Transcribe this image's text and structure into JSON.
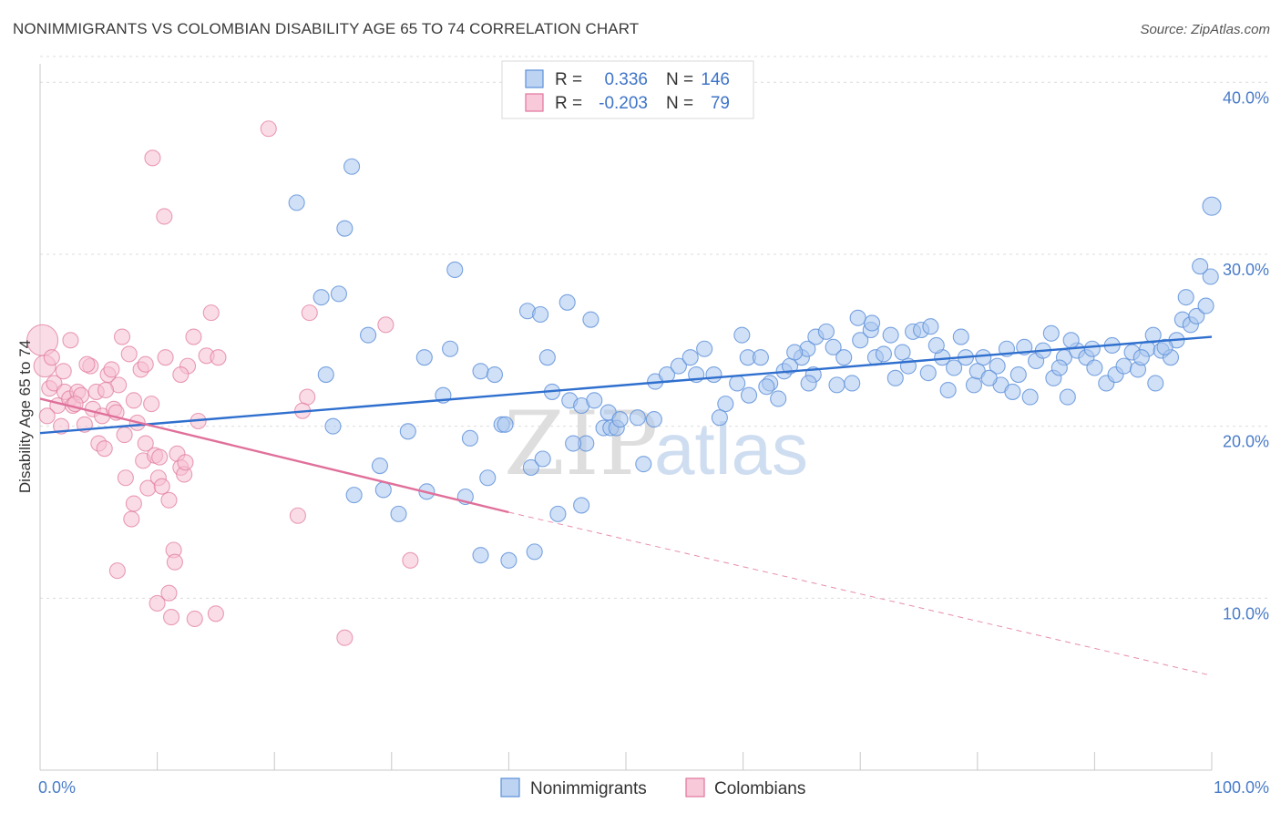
{
  "title": "NONIMMIGRANTS VS COLOMBIAN DISABILITY AGE 65 TO 74 CORRELATION CHART",
  "source": "Source: ZipAtlas.com",
  "watermark": {
    "zip": "ZIP",
    "atlas": "atlas"
  },
  "colors": {
    "blue": "#5b8fd9",
    "blue_fill": "#a9c6ee",
    "blue_line": "#2f6fce",
    "pink": "#e0769b",
    "pink_fill": "#f6bfd2",
    "pink_line": "#e0709a"
  },
  "legend_top": {
    "rows": [
      {
        "r_label": "R =",
        "r_value": "0.336",
        "n_label": "N =",
        "n_value": "146"
      },
      {
        "r_label": "R =",
        "r_value": "-0.203",
        "n_label": "N =",
        "n_value": "79"
      }
    ]
  },
  "legend_bottom": [
    "Nonimmigrants",
    "Colombians"
  ],
  "chart_data": {
    "type": "scatter",
    "title": "NONIMMIGRANTS VS COLOMBIAN DISABILITY AGE 65 TO 74 CORRELATION CHART",
    "xlabel": "",
    "ylabel": "Disability Age 65 to 74",
    "xlim": [
      0,
      100
    ],
    "ylim": [
      0,
      41.5
    ],
    "x_ticks": [
      "0.0%",
      "100.0%"
    ],
    "y_ticks": [
      {
        "value": 10,
        "label": "10.0%"
      },
      {
        "value": 20,
        "label": "20.0%"
      },
      {
        "value": 30,
        "label": "30.0%"
      },
      {
        "value": 40,
        "label": "40.0%"
      }
    ],
    "grid": true,
    "series": [
      {
        "name": "Nonimmigrants",
        "r": 0.336,
        "n": 146,
        "trend": {
          "x": [
            0,
            100
          ],
          "y": [
            19.6,
            25.2
          ]
        },
        "points": [
          [
            21.9,
            33.0
          ],
          [
            26.6,
            35.1
          ],
          [
            26.0,
            31.5
          ],
          [
            24.0,
            27.5
          ],
          [
            25.5,
            27.7
          ],
          [
            35.4,
            29.1
          ],
          [
            28.0,
            25.3
          ],
          [
            35.0,
            24.5
          ],
          [
            34.4,
            21.8
          ],
          [
            32.8,
            24.0
          ],
          [
            24.4,
            23.0
          ],
          [
            25.0,
            20.0
          ],
          [
            31.4,
            19.7
          ],
          [
            29.0,
            17.7
          ],
          [
            29.3,
            16.3
          ],
          [
            26.8,
            16.0
          ],
          [
            30.6,
            14.9
          ],
          [
            33.0,
            16.2
          ],
          [
            36.7,
            19.3
          ],
          [
            37.6,
            23.2
          ],
          [
            38.8,
            23.0
          ],
          [
            39.4,
            20.1
          ],
          [
            39.7,
            20.1
          ],
          [
            38.2,
            17.0
          ],
          [
            36.3,
            15.9
          ],
          [
            37.6,
            12.5
          ],
          [
            40.0,
            12.2
          ],
          [
            41.9,
            17.6
          ],
          [
            42.9,
            18.1
          ],
          [
            42.2,
            12.7
          ],
          [
            41.6,
            26.7
          ],
          [
            42.7,
            26.5
          ],
          [
            43.3,
            24.0
          ],
          [
            45.0,
            27.2
          ],
          [
            47.0,
            26.2
          ],
          [
            43.7,
            22.0
          ],
          [
            45.2,
            21.5
          ],
          [
            46.2,
            21.2
          ],
          [
            46.6,
            19.0
          ],
          [
            45.5,
            19.0
          ],
          [
            48.1,
            19.9
          ],
          [
            48.5,
            20.8
          ],
          [
            48.7,
            19.9
          ],
          [
            49.2,
            19.9
          ],
          [
            49.5,
            20.4
          ],
          [
            47.3,
            21.5
          ],
          [
            51.0,
            20.5
          ],
          [
            52.4,
            20.4
          ],
          [
            46.2,
            15.4
          ],
          [
            44.2,
            14.9
          ],
          [
            51.5,
            17.8
          ],
          [
            52.5,
            22.6
          ],
          [
            53.5,
            23.0
          ],
          [
            54.5,
            23.5
          ],
          [
            55.5,
            24.0
          ],
          [
            56.7,
            24.5
          ],
          [
            57.5,
            23.0
          ],
          [
            58.5,
            21.3
          ],
          [
            59.5,
            22.5
          ],
          [
            59.9,
            25.3
          ],
          [
            60.4,
            24.0
          ],
          [
            61.5,
            24.0
          ],
          [
            62.3,
            22.5
          ],
          [
            63.0,
            21.6
          ],
          [
            63.5,
            23.2
          ],
          [
            64.0,
            23.5
          ],
          [
            65.0,
            24.0
          ],
          [
            65.5,
            24.5
          ],
          [
            66.2,
            25.2
          ],
          [
            67.1,
            25.5
          ],
          [
            66.0,
            23.0
          ],
          [
            67.7,
            24.6
          ],
          [
            68.6,
            24.0
          ],
          [
            69.3,
            22.5
          ],
          [
            70.0,
            25.0
          ],
          [
            70.9,
            25.6
          ],
          [
            71.3,
            24.0
          ],
          [
            72.6,
            25.3
          ],
          [
            73.6,
            24.3
          ],
          [
            74.5,
            25.5
          ],
          [
            74.1,
            23.5
          ],
          [
            75.2,
            25.6
          ],
          [
            76.0,
            25.8
          ],
          [
            77.0,
            24.0
          ],
          [
            78.0,
            23.4
          ],
          [
            79.0,
            24.0
          ],
          [
            79.7,
            22.4
          ],
          [
            80.5,
            24.0
          ],
          [
            81.7,
            23.5
          ],
          [
            82.5,
            24.5
          ],
          [
            83.5,
            23.0
          ],
          [
            84.0,
            24.6
          ],
          [
            85.0,
            23.8
          ],
          [
            85.6,
            24.4
          ],
          [
            86.5,
            22.8
          ],
          [
            87.4,
            24.0
          ],
          [
            87.7,
            21.7
          ],
          [
            88.5,
            24.4
          ],
          [
            89.3,
            24.0
          ],
          [
            90.0,
            23.4
          ],
          [
            91.0,
            22.5
          ],
          [
            91.8,
            23.0
          ],
          [
            92.5,
            23.5
          ],
          [
            93.2,
            24.3
          ],
          [
            93.7,
            23.3
          ],
          [
            94.5,
            24.5
          ],
          [
            95.0,
            25.3
          ],
          [
            95.7,
            24.4
          ],
          [
            96.5,
            24.0
          ],
          [
            97.0,
            25.0
          ],
          [
            97.5,
            26.2
          ],
          [
            98.2,
            25.9
          ],
          [
            98.7,
            26.4
          ],
          [
            99.5,
            27.0
          ],
          [
            99.9,
            28.7
          ],
          [
            100.0,
            32.8
          ],
          [
            99.0,
            29.3
          ],
          [
            56.0,
            23.0
          ],
          [
            58.0,
            20.5
          ],
          [
            62.0,
            22.3
          ],
          [
            64.4,
            24.3
          ],
          [
            68.0,
            22.4
          ],
          [
            71.0,
            26.0
          ],
          [
            73.0,
            22.8
          ],
          [
            75.8,
            23.1
          ],
          [
            77.5,
            22.1
          ],
          [
            80.0,
            23.2
          ],
          [
            82.0,
            22.4
          ],
          [
            84.5,
            21.7
          ],
          [
            86.3,
            25.4
          ],
          [
            88.0,
            25.0
          ],
          [
            89.8,
            24.5
          ],
          [
            91.5,
            24.7
          ],
          [
            95.2,
            22.5
          ],
          [
            96.0,
            24.6
          ],
          [
            60.5,
            21.8
          ],
          [
            65.6,
            22.5
          ],
          [
            69.8,
            26.3
          ],
          [
            72.0,
            24.2
          ],
          [
            76.5,
            24.7
          ],
          [
            78.6,
            25.2
          ],
          [
            81.0,
            22.8
          ],
          [
            83.0,
            22.0
          ],
          [
            87.0,
            23.4
          ],
          [
            94.0,
            24.0
          ],
          [
            97.8,
            27.5
          ]
        ]
      },
      {
        "name": "Colombians",
        "r": -0.203,
        "n": 79,
        "trend": {
          "x": [
            0,
            40
          ],
          "y": [
            21.6,
            15.0
          ]
        },
        "trend_extended": {
          "x": [
            40,
            100
          ],
          "y": [
            15.0,
            5.5
          ]
        },
        "points": [
          [
            0.2,
            25.0
          ],
          [
            0.4,
            23.5
          ],
          [
            0.8,
            22.2
          ],
          [
            1.2,
            22.5
          ],
          [
            1.5,
            21.2
          ],
          [
            1.8,
            20.0
          ],
          [
            2.1,
            22.0
          ],
          [
            2.5,
            21.6
          ],
          [
            2.8,
            21.2
          ],
          [
            3.2,
            22.0
          ],
          [
            3.5,
            21.8
          ],
          [
            3.8,
            20.1
          ],
          [
            4.3,
            23.5
          ],
          [
            4.5,
            21.0
          ],
          [
            4.8,
            22.0
          ],
          [
            5.0,
            19.0
          ],
          [
            5.3,
            20.6
          ],
          [
            5.5,
            18.7
          ],
          [
            5.8,
            23.0
          ],
          [
            6.1,
            23.3
          ],
          [
            6.3,
            21.0
          ],
          [
            6.7,
            22.4
          ],
          [
            7.0,
            25.2
          ],
          [
            7.3,
            17.0
          ],
          [
            7.6,
            24.2
          ],
          [
            8.0,
            21.5
          ],
          [
            8.3,
            20.2
          ],
          [
            8.6,
            23.3
          ],
          [
            8.8,
            18.0
          ],
          [
            9.0,
            19.0
          ],
          [
            9.2,
            16.4
          ],
          [
            9.5,
            21.3
          ],
          [
            9.8,
            18.3
          ],
          [
            10.1,
            17.0
          ],
          [
            10.4,
            16.5
          ],
          [
            10.7,
            24.0
          ],
          [
            11.0,
            15.7
          ],
          [
            11.4,
            12.8
          ],
          [
            11.7,
            18.4
          ],
          [
            12.0,
            17.6
          ],
          [
            12.3,
            17.2
          ],
          [
            12.6,
            23.5
          ],
          [
            13.1,
            25.2
          ],
          [
            13.5,
            20.3
          ],
          [
            14.2,
            24.1
          ],
          [
            14.6,
            26.6
          ],
          [
            15.2,
            24.0
          ],
          [
            15.0,
            9.1
          ],
          [
            12.0,
            23.0
          ],
          [
            7.2,
            19.5
          ],
          [
            10.6,
            32.2
          ],
          [
            9.6,
            35.6
          ],
          [
            7.8,
            14.6
          ],
          [
            8.0,
            15.5
          ],
          [
            6.6,
            11.6
          ],
          [
            11.5,
            12.1
          ],
          [
            13.2,
            8.8
          ],
          [
            11.0,
            10.3
          ],
          [
            10.0,
            9.7
          ],
          [
            11.2,
            8.9
          ],
          [
            19.5,
            37.3
          ],
          [
            23.0,
            26.6
          ],
          [
            22.8,
            21.7
          ],
          [
            22.4,
            20.9
          ],
          [
            22.0,
            14.8
          ],
          [
            29.5,
            25.9
          ],
          [
            26.0,
            7.7
          ],
          [
            31.6,
            12.2
          ],
          [
            1.0,
            24.0
          ],
          [
            2.0,
            23.2
          ],
          [
            3.0,
            21.3
          ],
          [
            4.0,
            23.6
          ],
          [
            5.6,
            22.1
          ],
          [
            6.5,
            20.8
          ],
          [
            9.0,
            23.6
          ],
          [
            10.2,
            18.2
          ],
          [
            12.4,
            17.9
          ],
          [
            0.6,
            20.6
          ],
          [
            2.6,
            25.0
          ]
        ]
      }
    ]
  }
}
